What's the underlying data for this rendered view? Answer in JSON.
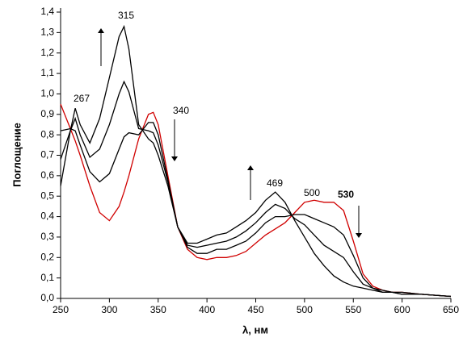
{
  "chart_data": {
    "type": "line",
    "y_label": "Поглощение",
    "x_label": "λ, нм",
    "annotations": [
      "267",
      "315",
      "340",
      "469",
      "500",
      "530"
    ],
    "x": [
      250,
      260,
      265,
      270,
      280,
      290,
      300,
      310,
      315,
      320,
      330,
      340,
      345,
      350,
      360,
      370,
      380,
      390,
      400,
      410,
      420,
      430,
      440,
      450,
      460,
      470,
      480,
      490,
      500,
      510,
      520,
      530,
      540,
      550,
      560,
      570,
      580,
      590,
      600,
      620,
      650
    ],
    "series": [
      {
        "color": "#d00000",
        "values": [
          0.95,
          0.83,
          0.77,
          0.7,
          0.55,
          0.42,
          0.38,
          0.45,
          0.52,
          0.6,
          0.78,
          0.9,
          0.91,
          0.85,
          0.6,
          0.35,
          0.24,
          0.2,
          0.19,
          0.2,
          0.2,
          0.21,
          0.23,
          0.27,
          0.31,
          0.34,
          0.37,
          0.42,
          0.47,
          0.48,
          0.47,
          0.47,
          0.43,
          0.28,
          0.12,
          0.06,
          0.04,
          0.03,
          0.03,
          0.02,
          0.01
        ]
      },
      {
        "color": "#000000",
        "values": [
          0.82,
          0.83,
          0.82,
          0.75,
          0.62,
          0.57,
          0.61,
          0.73,
          0.79,
          0.81,
          0.8,
          0.86,
          0.86,
          0.8,
          0.58,
          0.35,
          0.25,
          0.22,
          0.22,
          0.24,
          0.24,
          0.26,
          0.28,
          0.32,
          0.37,
          0.4,
          0.4,
          0.41,
          0.41,
          0.39,
          0.37,
          0.35,
          0.31,
          0.21,
          0.1,
          0.05,
          0.04,
          0.03,
          0.03,
          0.02,
          0.01
        ]
      },
      {
        "color": "#000000",
        "values": [
          0.68,
          0.82,
          0.88,
          0.8,
          0.69,
          0.73,
          0.85,
          1.0,
          1.06,
          1.01,
          0.83,
          0.82,
          0.81,
          0.75,
          0.57,
          0.35,
          0.26,
          0.25,
          0.26,
          0.27,
          0.28,
          0.3,
          0.33,
          0.37,
          0.42,
          0.46,
          0.44,
          0.39,
          0.36,
          0.31,
          0.26,
          0.23,
          0.2,
          0.13,
          0.07,
          0.05,
          0.03,
          0.03,
          0.02,
          0.02,
          0.01
        ]
      },
      {
        "color": "#000000",
        "values": [
          0.55,
          0.82,
          0.93,
          0.85,
          0.76,
          0.88,
          1.08,
          1.28,
          1.33,
          1.22,
          0.85,
          0.78,
          0.76,
          0.7,
          0.55,
          0.35,
          0.27,
          0.27,
          0.29,
          0.31,
          0.32,
          0.35,
          0.38,
          0.42,
          0.48,
          0.52,
          0.47,
          0.38,
          0.3,
          0.22,
          0.16,
          0.11,
          0.08,
          0.06,
          0.05,
          0.04,
          0.03,
          0.03,
          0.02,
          0.02,
          0.01
        ]
      }
    ],
    "xlim": [
      250,
      650
    ],
    "ylim": [
      0,
      1.4
    ],
    "xticks": [
      250,
      300,
      350,
      400,
      450,
      500,
      550,
      600,
      650
    ],
    "yticks": [
      {
        "value": 0,
        "label": "0,0"
      },
      {
        "value": 0.1,
        "label": "0,1"
      },
      {
        "value": 0.2,
        "label": "0,2"
      },
      {
        "value": 0.3,
        "label": "0,3"
      },
      {
        "value": 0.4,
        "label": "0,4"
      },
      {
        "value": 0.5,
        "label": "0,5"
      },
      {
        "value": 0.6,
        "label": "0,6"
      },
      {
        "value": 0.7,
        "label": "0,7"
      },
      {
        "value": 0.8,
        "label": "0,8"
      },
      {
        "value": 0.9,
        "label": "0,9"
      },
      {
        "value": 1.0,
        "label": "1,0"
      },
      {
        "value": 1.1,
        "label": "1,1"
      },
      {
        "value": 1.2,
        "label": "1,2"
      },
      {
        "value": 1.3,
        "label": "1,3"
      },
      {
        "value": 1.4,
        "label": "1,4"
      }
    ]
  }
}
